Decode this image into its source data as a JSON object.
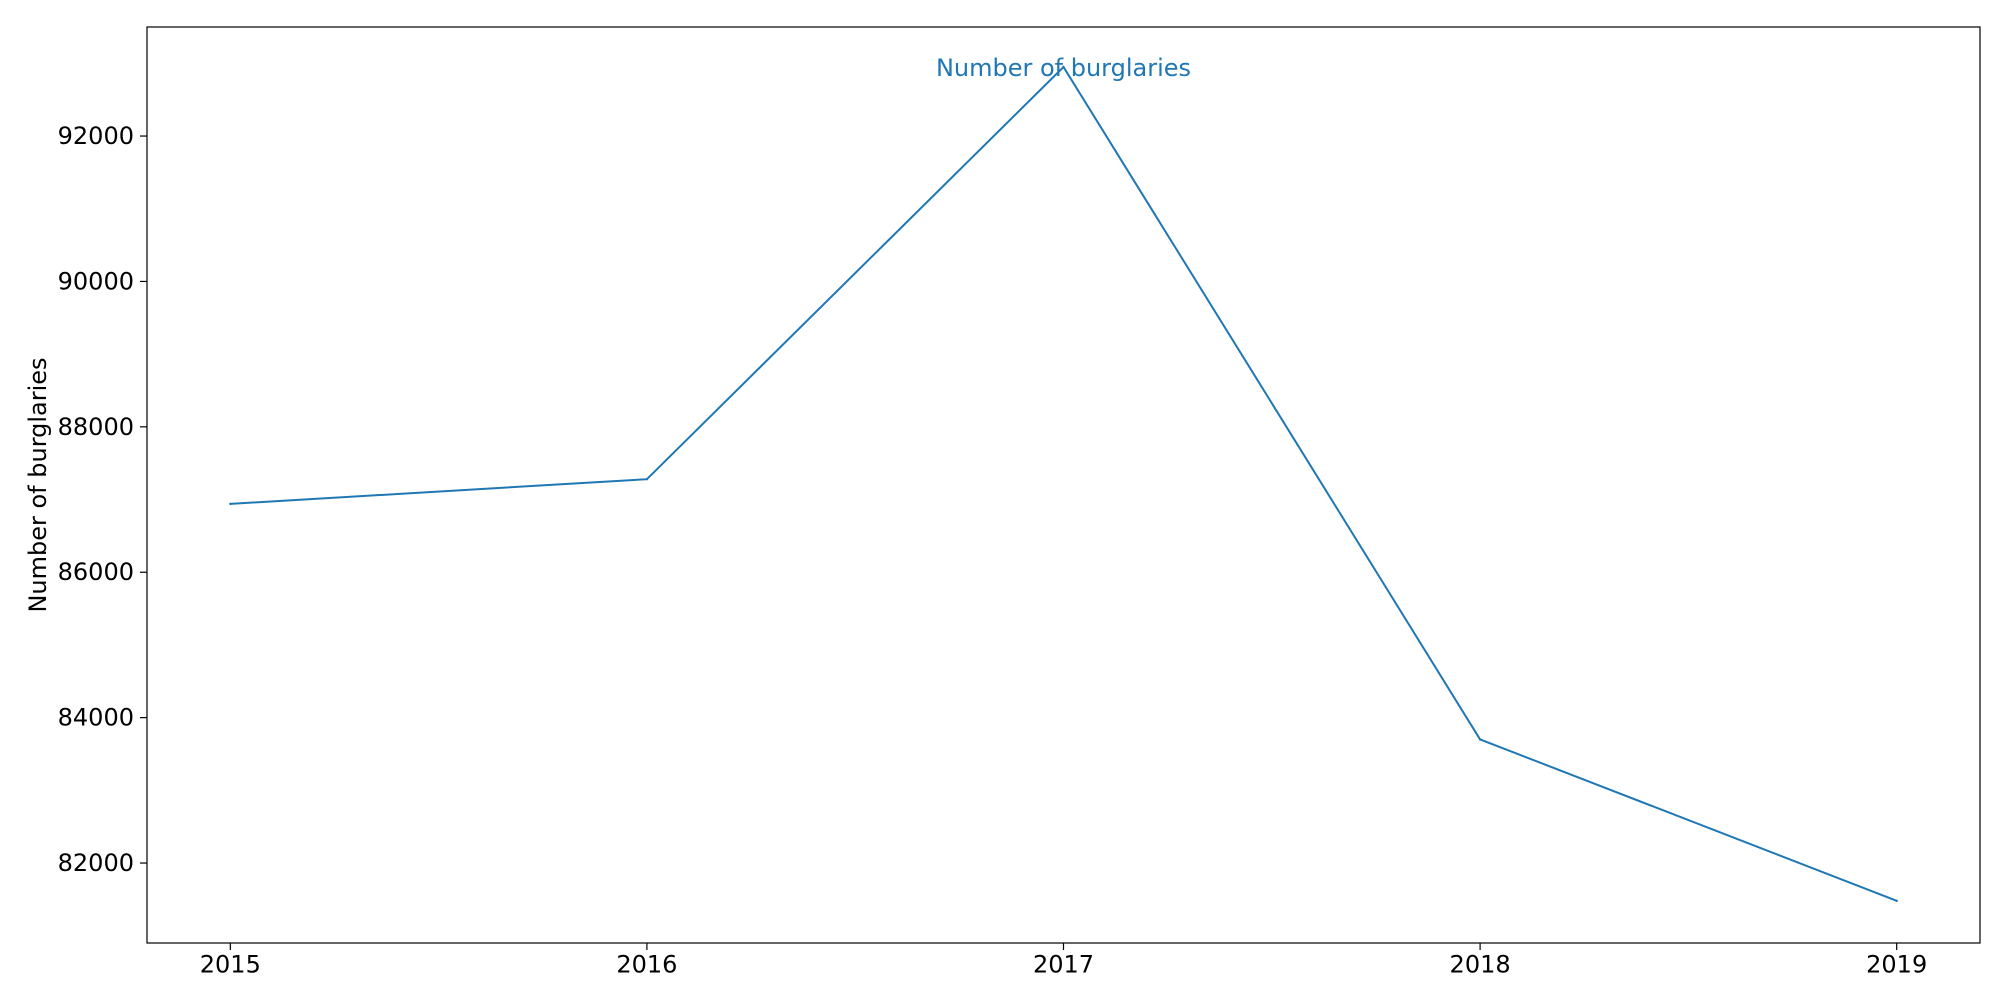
{
  "chart_data": {
    "type": "line",
    "title": "",
    "xlabel": "",
    "ylabel": "Number of burglaries",
    "x": [
      2015,
      2016,
      2017,
      2018,
      2019
    ],
    "x_tick_labels": [
      "2015",
      "2016",
      "2017",
      "2018",
      "2019"
    ],
    "y_ticks": [
      82000,
      84000,
      86000,
      88000,
      90000,
      92000
    ],
    "y_tick_labels": [
      "82000",
      "84000",
      "86000",
      "88000",
      "90000",
      "92000"
    ],
    "xlim": [
      2014.8,
      2019.2
    ],
    "ylim": [
      80900,
      93500
    ],
    "series": [
      {
        "color": "#1f77b4",
        "values": [
          86940,
          87280,
          92950,
          83700,
          81480
        ]
      }
    ],
    "annotations": [
      {
        "text": "Number of burglaries",
        "x": 2017,
        "y": 92950,
        "color": "#1f77b4"
      }
    ],
    "grid": false,
    "legend": "none"
  }
}
